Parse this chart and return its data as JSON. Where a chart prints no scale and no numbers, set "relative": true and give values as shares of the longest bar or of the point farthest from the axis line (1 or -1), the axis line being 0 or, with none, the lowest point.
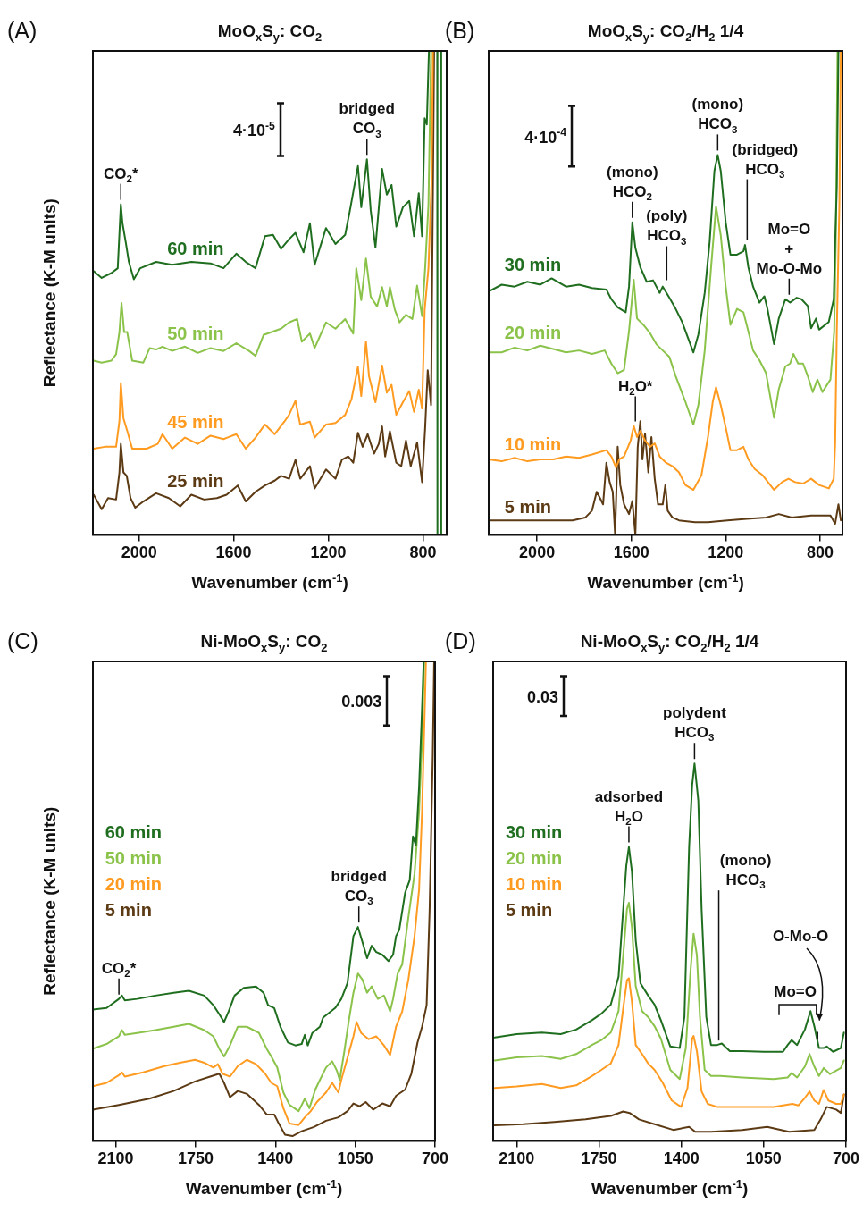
{
  "chart_data": [
    {
      "type": "line",
      "title": "MoO$_{x}$S$_{y}$: CO$_{2}$",
      "xlabel": "Wavenumber (cm$^{-1}$)",
      "ylabel": "Reflectance (K-M units)",
      "relative": true,
      "xlim": [
        2195,
        700
      ],
      "xticks": [
        2000,
        1600,
        1200,
        800
      ],
      "annotations": [
        "(A)",
        "4·10$^{-5}$",
        {
          "text": "CO$_{2}$*",
          "x": 2077,
          "y": 0.683
        },
        {
          "text": "bridged\nCO$_{3}$",
          "x": 1037,
          "y": 0.776
        }
      ],
      "series": [
        {
          "name": "60 min",
          "color": "#1f6e1f",
          "x": [
            2192,
            2158,
            2117,
            2090,
            2077,
            2070,
            2056,
            2043,
            2022,
            1995,
            1928,
            1860,
            1779,
            1698,
            1643,
            1589,
            1549,
            1508,
            1468,
            1434,
            1400,
            1366,
            1339,
            1305,
            1278,
            1258,
            1210,
            1170,
            1129,
            1109,
            1075,
            1061,
            1037,
            1021,
            1001,
            973,
            953,
            933,
            913,
            885,
            858,
            838,
            818,
            804,
            793,
            784,
            775,
            740,
            739,
            724,
            723
          ],
          "values": [
            0.545,
            0.531,
            0.541,
            0.551,
            0.683,
            0.644,
            0.604,
            0.564,
            0.528,
            0.551,
            0.564,
            0.558,
            0.564,
            0.561,
            0.551,
            0.581,
            0.564,
            0.551,
            0.617,
            0.62,
            0.591,
            0.611,
            0.624,
            0.584,
            0.644,
            0.558,
            0.634,
            0.601,
            0.62,
            0.67,
            0.762,
            0.677,
            0.776,
            0.67,
            0.594,
            0.756,
            0.703,
            0.723,
            0.637,
            0.677,
            0.69,
            0.617,
            0.706,
            0.617,
            0.861,
            0.848,
            1.0,
            1.0,
            0.0,
            0.0,
            1.0
          ]
        },
        {
          "name": "50 min",
          "color": "#8bc34a",
          "x": [
            2192,
            2158,
            2117,
            2097,
            2083,
            2074,
            2063,
            2050,
            2029,
            1982,
            1955,
            1928,
            1901,
            1860,
            1806,
            1752,
            1698,
            1643,
            1589,
            1535,
            1508,
            1474,
            1440,
            1400,
            1366,
            1332,
            1312,
            1278,
            1258,
            1210,
            1170,
            1129,
            1095,
            1082,
            1061,
            1041,
            1021,
            994,
            973,
            953,
            940,
            919,
            899,
            872,
            845,
            825,
            804,
            791,
            777,
            766
          ],
          "values": [
            0.36,
            0.356,
            0.36,
            0.373,
            0.419,
            0.479,
            0.419,
            0.419,
            0.36,
            0.356,
            0.386,
            0.383,
            0.389,
            0.38,
            0.389,
            0.376,
            0.386,
            0.38,
            0.396,
            0.38,
            0.37,
            0.413,
            0.419,
            0.426,
            0.439,
            0.446,
            0.399,
            0.416,
            0.386,
            0.439,
            0.426,
            0.446,
            0.416,
            0.551,
            0.485,
            0.571,
            0.492,
            0.472,
            0.512,
            0.472,
            0.512,
            0.465,
            0.439,
            0.455,
            0.446,
            0.515,
            0.452,
            0.551,
            0.683,
            1.0
          ]
        },
        {
          "name": "45 min",
          "color": "#ff9b21",
          "x": [
            2192,
            2144,
            2097,
            2083,
            2077,
            2066,
            2050,
            2029,
            1968,
            1921,
            1901,
            1860,
            1806,
            1752,
            1698,
            1643,
            1589,
            1549,
            1508,
            1468,
            1427,
            1386,
            1366,
            1339,
            1319,
            1278,
            1258,
            1210,
            1170,
            1129,
            1102,
            1075,
            1061,
            1041,
            1028,
            1001,
            973,
            953,
            933,
            913,
            885,
            858,
            838,
            818,
            804,
            793,
            777,
            764,
            758
          ],
          "values": [
            0.178,
            0.182,
            0.182,
            0.235,
            0.314,
            0.241,
            0.215,
            0.178,
            0.178,
            0.188,
            0.208,
            0.178,
            0.201,
            0.188,
            0.205,
            0.198,
            0.208,
            0.178,
            0.201,
            0.228,
            0.208,
            0.234,
            0.248,
            0.277,
            0.228,
            0.234,
            0.201,
            0.228,
            0.231,
            0.248,
            0.281,
            0.347,
            0.287,
            0.399,
            0.327,
            0.274,
            0.35,
            0.294,
            0.31,
            0.248,
            0.274,
            0.297,
            0.254,
            0.3,
            0.261,
            0.465,
            0.551,
            0.729,
            1.0
          ]
        },
        {
          "name": "25 min",
          "color": "#5c3a14",
          "x": [
            2192,
            2158,
            2131,
            2097,
            2083,
            2077,
            2066,
            2052,
            2036,
            2016,
            1982,
            1928,
            1874,
            1826,
            1779,
            1725,
            1671,
            1630,
            1583,
            1549,
            1508,
            1468,
            1427,
            1400,
            1366,
            1339,
            1319,
            1278,
            1258,
            1210,
            1170,
            1143,
            1116,
            1095,
            1075,
            1055,
            1034,
            1007,
            987,
            973,
            960,
            940,
            913,
            892,
            872,
            852,
            825,
            804,
            791,
            780,
            766,
            753
          ],
          "values": [
            0.083,
            0.053,
            0.076,
            0.073,
            0.129,
            0.188,
            0.129,
            0.122,
            0.076,
            0.056,
            0.069,
            0.086,
            0.076,
            0.059,
            0.083,
            0.073,
            0.076,
            0.083,
            0.102,
            0.069,
            0.089,
            0.102,
            0.112,
            0.122,
            0.116,
            0.155,
            0.116,
            0.142,
            0.096,
            0.135,
            0.116,
            0.155,
            0.162,
            0.149,
            0.211,
            0.182,
            0.208,
            0.168,
            0.188,
            0.224,
            0.162,
            0.214,
            0.149,
            0.142,
            0.195,
            0.142,
            0.191,
            0.109,
            0.221,
            0.34,
            0.268,
            1.0
          ]
        }
      ]
    },
    {
      "type": "line",
      "title": "MoO$_{x}$S$_{y}$: CO$_{2}$/H$_{2}$ 1/4",
      "xlabel": "Wavenumber (cm$^{-1}$)",
      "relative": true,
      "xlim": [
        2205,
        705
      ],
      "xticks": [
        2000,
        1600,
        1200,
        800
      ],
      "annotations": [
        "(B)",
        "4·10$^{-4}$",
        {
          "text": "(mono)\nHCO$_{2}$",
          "x": 1596,
          "y": 0.646
        },
        {
          "text": "(poly)\nHCO$_{3}$",
          "x": 1450,
          "y": 0.517
        },
        {
          "text": "(mono)\nHCO$_{3}$",
          "x": 1234,
          "y": 0.785
        },
        {
          "text": "(bridged)\nHCO$_{3}$",
          "x": 1109,
          "y": 0.6
        },
        {
          "text": "Mo=O\n+\nMo-O-Mo",
          "x": 931,
          "y": 0.487
        },
        {
          "text": "H$_{2}$O*",
          "x": 1583,
          "y": 0.225
        }
      ],
      "series": [
        {
          "name": "30 min",
          "color": "#1f6e1f",
          "x": [
            2205,
            2150,
            2095,
            2041,
            1986,
            1938,
            1877,
            1822,
            1767,
            1706,
            1685,
            1658,
            1624,
            1610,
            1596,
            1583,
            1562,
            1535,
            1508,
            1480,
            1467,
            1439,
            1412,
            1385,
            1337,
            1316,
            1289,
            1268,
            1248,
            1234,
            1221,
            1200,
            1180,
            1152,
            1125,
            1118,
            1104,
            1084,
            1057,
            1036,
            1023,
            995,
            975,
            947,
            927,
            899,
            879,
            852,
            838,
            817,
            804,
            763,
            742,
            736,
            729,
            722
          ],
          "values": [
            0.503,
            0.517,
            0.513,
            0.523,
            0.517,
            0.53,
            0.513,
            0.517,
            0.51,
            0.507,
            0.487,
            0.47,
            0.46,
            0.513,
            0.646,
            0.593,
            0.553,
            0.523,
            0.526,
            0.5,
            0.513,
            0.49,
            0.467,
            0.44,
            0.377,
            0.414,
            0.5,
            0.606,
            0.752,
            0.785,
            0.752,
            0.646,
            0.579,
            0.579,
            0.586,
            0.599,
            0.553,
            0.513,
            0.48,
            0.493,
            0.467,
            0.394,
            0.447,
            0.487,
            0.48,
            0.49,
            0.487,
            0.473,
            0.427,
            0.447,
            0.424,
            0.44,
            0.487,
            0.606,
            0.719,
            1.0
          ]
        },
        {
          "name": "20 min",
          "color": "#8bc34a",
          "x": [
            2205,
            2150,
            2095,
            2041,
            1986,
            1931,
            1877,
            1822,
            1767,
            1713,
            1685,
            1658,
            1631,
            1610,
            1590,
            1576,
            1549,
            1521,
            1494,
            1467,
            1439,
            1412,
            1371,
            1337,
            1316,
            1289,
            1262,
            1241,
            1221,
            1200,
            1180,
            1152,
            1125,
            1111,
            1084,
            1057,
            1029,
            995,
            975,
            947,
            927,
            913,
            893,
            872,
            852,
            831,
            811,
            790,
            756,
            740,
            733,
            726
          ],
          "values": [
            0.377,
            0.377,
            0.387,
            0.381,
            0.391,
            0.384,
            0.377,
            0.381,
            0.374,
            0.381,
            0.354,
            0.334,
            0.341,
            0.421,
            0.527,
            0.447,
            0.434,
            0.417,
            0.394,
            0.381,
            0.368,
            0.328,
            0.275,
            0.228,
            0.268,
            0.381,
            0.553,
            0.679,
            0.619,
            0.513,
            0.434,
            0.467,
            0.46,
            0.434,
            0.381,
            0.361,
            0.334,
            0.242,
            0.301,
            0.348,
            0.354,
            0.374,
            0.354,
            0.354,
            0.328,
            0.295,
            0.321,
            0.295,
            0.321,
            0.421,
            0.619,
            1.0
          ]
        },
        {
          "name": "10 min",
          "color": "#ff9b21",
          "x": [
            2205,
            2150,
            2095,
            2041,
            1986,
            1931,
            1877,
            1822,
            1767,
            1706,
            1685,
            1665,
            1651,
            1631,
            1603,
            1590,
            1576,
            1562,
            1542,
            1521,
            1501,
            1480,
            1453,
            1426,
            1398,
            1371,
            1337,
            1303,
            1275,
            1255,
            1241,
            1221,
            1200,
            1180,
            1152,
            1125,
            1104,
            1077,
            1043,
            995,
            961,
            934,
            906,
            872,
            838,
            804,
            763,
            742,
            736,
            729,
            718,
            712
          ],
          "values": [
            0.156,
            0.152,
            0.159,
            0.152,
            0.156,
            0.156,
            0.162,
            0.159,
            0.166,
            0.175,
            0.162,
            0.139,
            0.156,
            0.162,
            0.195,
            0.225,
            0.202,
            0.215,
            0.195,
            0.182,
            0.189,
            0.162,
            0.149,
            0.142,
            0.129,
            0.103,
            0.093,
            0.123,
            0.203,
            0.275,
            0.305,
            0.268,
            0.222,
            0.175,
            0.175,
            0.182,
            0.156,
            0.136,
            0.123,
            0.093,
            0.109,
            0.116,
            0.109,
            0.106,
            0.116,
            0.103,
            0.096,
            0.116,
            0.189,
            0.421,
            0.685,
            1.0
          ]
        },
        {
          "name": "5 min",
          "color": "#5c3a14",
          "x": [
            2205,
            2095,
            1959,
            1849,
            1795,
            1767,
            1747,
            1733,
            1720,
            1706,
            1692,
            1679,
            1669,
            1658,
            1647,
            1631,
            1610,
            1596,
            1583,
            1573,
            1562,
            1553,
            1542,
            1528,
            1515,
            1501,
            1487,
            1467,
            1456,
            1446,
            1426,
            1398,
            1330,
            1275,
            1193,
            1111,
            1029,
            975,
            920,
            838,
            756,
            736,
            722,
            712
          ],
          "values": [
            0.03,
            0.03,
            0.03,
            0.03,
            0.036,
            0.05,
            0.089,
            0.076,
            0.063,
            0.149,
            0.109,
            0.089,
            0.0,
            0.182,
            0.103,
            0.063,
            0.043,
            0.07,
            0.0,
            0.182,
            0.235,
            0.156,
            0.209,
            0.129,
            0.202,
            0.116,
            0.063,
            0.063,
            0.103,
            0.05,
            0.036,
            0.03,
            0.026,
            0.026,
            0.03,
            0.033,
            0.036,
            0.043,
            0.036,
            0.04,
            0.04,
            0.023,
            0.063,
            0.03
          ]
        }
      ]
    },
    {
      "type": "line",
      "title": "Ni-MoO$_{x}$S$_{y}$: CO$_{2}$",
      "xlabel": "Wavenumber (cm$^{-1}$)",
      "ylabel": "Reflectance (K-M units)",
      "relative": true,
      "xlim": [
        2200,
        700
      ],
      "xticks": [
        2100,
        1750,
        1400,
        1050,
        700
      ],
      "annotations": [
        "(C)",
        "0.003",
        {
          "text": "CO$_{2}$*",
          "x": 2086,
          "y": 0.296
        },
        {
          "text": "bridged\nCO$_{3}$",
          "x": 1034,
          "y": 0.446
        }
      ],
      "series": [
        {
          "name": "60 min",
          "color": "#1f6e1f",
          "x": [
            2200,
            2140,
            2086,
            2073,
            2060,
            2006,
            1926,
            1846,
            1779,
            1712,
            1672,
            1646,
            1625,
            1605,
            1579,
            1539,
            1485,
            1452,
            1432,
            1405,
            1378,
            1345,
            1312,
            1285,
            1271,
            1258,
            1238,
            1205,
            1191,
            1165,
            1138,
            1111,
            1084,
            1058,
            1038,
            1018,
            998,
            978,
            958,
            931,
            904,
            884,
            871,
            857,
            831,
            811,
            797,
            784,
            770,
            757,
            750
          ],
          "values": [
            0.274,
            0.277,
            0.296,
            0.303,
            0.293,
            0.296,
            0.303,
            0.309,
            0.313,
            0.303,
            0.283,
            0.264,
            0.248,
            0.27,
            0.303,
            0.319,
            0.322,
            0.309,
            0.283,
            0.277,
            0.238,
            0.205,
            0.199,
            0.202,
            0.221,
            0.199,
            0.225,
            0.238,
            0.257,
            0.267,
            0.277,
            0.296,
            0.329,
            0.427,
            0.446,
            0.414,
            0.381,
            0.407,
            0.394,
            0.388,
            0.375,
            0.388,
            0.427,
            0.44,
            0.518,
            0.544,
            0.635,
            0.616,
            0.739,
            0.902,
            1.0
          ]
        },
        {
          "name": "50 min",
          "color": "#8bc34a",
          "x": [
            2200,
            2140,
            2086,
            2073,
            2060,
            2006,
            1926,
            1846,
            1779,
            1712,
            1672,
            1646,
            1625,
            1599,
            1565,
            1525,
            1472,
            1438,
            1418,
            1392,
            1365,
            1338,
            1298,
            1271,
            1251,
            1225,
            1205,
            1178,
            1151,
            1131,
            1118,
            1098,
            1078,
            1058,
            1038,
            1018,
            998,
            978,
            951,
            924,
            897,
            884,
            864,
            844,
            817,
            790,
            770,
            757,
            748
          ],
          "values": [
            0.192,
            0.202,
            0.218,
            0.231,
            0.221,
            0.225,
            0.231,
            0.238,
            0.244,
            0.231,
            0.218,
            0.192,
            0.176,
            0.199,
            0.238,
            0.238,
            0.225,
            0.192,
            0.176,
            0.153,
            0.101,
            0.075,
            0.062,
            0.088,
            0.068,
            0.107,
            0.127,
            0.153,
            0.166,
            0.147,
            0.127,
            0.186,
            0.251,
            0.309,
            0.349,
            0.336,
            0.309,
            0.322,
            0.296,
            0.303,
            0.27,
            0.296,
            0.349,
            0.368,
            0.466,
            0.557,
            0.687,
            0.837,
            1.0
          ]
        },
        {
          "name": "20 min",
          "color": "#ff9b21",
          "x": [
            2200,
            2140,
            2086,
            2073,
            2060,
            1980,
            1886,
            1819,
            1752,
            1712,
            1672,
            1652,
            1632,
            1599,
            1565,
            1525,
            1485,
            1445,
            1418,
            1392,
            1365,
            1338,
            1298,
            1271,
            1245,
            1218,
            1178,
            1151,
            1124,
            1111,
            1084,
            1058,
            1044,
            1024,
            991,
            958,
            924,
            897,
            871,
            844,
            817,
            790,
            770,
            757,
            744,
            740
          ],
          "values": [
            0.114,
            0.121,
            0.137,
            0.143,
            0.134,
            0.143,
            0.156,
            0.163,
            0.169,
            0.163,
            0.153,
            0.16,
            0.14,
            0.134,
            0.156,
            0.169,
            0.16,
            0.14,
            0.121,
            0.114,
            0.068,
            0.036,
            0.033,
            0.049,
            0.062,
            0.081,
            0.101,
            0.121,
            0.101,
            0.127,
            0.173,
            0.218,
            0.248,
            0.225,
            0.212,
            0.218,
            0.199,
            0.179,
            0.238,
            0.27,
            0.336,
            0.427,
            0.524,
            0.687,
            0.922,
            1.0
          ]
        },
        {
          "name": "5 min",
          "color": "#5c3a14",
          "x": [
            2200,
            2086,
            1953,
            1846,
            1752,
            1686,
            1646,
            1625,
            1599,
            1565,
            1525,
            1472,
            1438,
            1405,
            1385,
            1358,
            1325,
            1285,
            1231,
            1178,
            1124,
            1084,
            1058,
            1031,
            1004,
            971,
            931,
            897,
            871,
            831,
            804,
            777,
            757,
            737,
            724,
            710,
            704
          ],
          "values": [
            0.065,
            0.075,
            0.088,
            0.104,
            0.124,
            0.134,
            0.14,
            0.121,
            0.091,
            0.104,
            0.098,
            0.075,
            0.055,
            0.055,
            0.036,
            0.013,
            0.01,
            0.02,
            0.029,
            0.042,
            0.049,
            0.062,
            0.078,
            0.072,
            0.081,
            0.065,
            0.078,
            0.072,
            0.094,
            0.107,
            0.14,
            0.205,
            0.238,
            0.283,
            0.479,
            0.805,
            1.0
          ]
        }
      ]
    },
    {
      "type": "line",
      "title": "Ni-MoO$_{x}$S$_{y}$: CO$_{2}$/H$_{2}$ 1/4",
      "xlabel": "Wavenumber (cm$^{-1}$)",
      "relative": true,
      "xlim": [
        2200,
        700
      ],
      "xticks": [
        2100,
        1750,
        1400,
        1050,
        700
      ],
      "annotations": [
        "(D)",
        "0.03",
        "Mo=O",
        "O-Mo-O",
        {
          "text": "adsorbed\nH$_{2}$O",
          "x": 1623,
          "y": 0.779
        },
        {
          "text": "polydent\nHCO$_{3}$",
          "x": 1344,
          "y": 1.0
        },
        {
          "text": "(mono)\nHCO$_{3}$",
          "x": 1241,
          "y": 0.254
        }
      ],
      "series": [
        {
          "name": "30 min",
          "color": "#1f6e1f",
          "x": [
            2193,
            2100,
            1993,
            1913,
            1847,
            1780,
            1740,
            1700,
            1667,
            1647,
            1634,
            1623,
            1610,
            1594,
            1574,
            1541,
            1514,
            1487,
            1447,
            1407,
            1387,
            1367,
            1354,
            1344,
            1328,
            1314,
            1294,
            1274,
            1248,
            1228,
            1194,
            1141,
            1048,
            968,
            948,
            931,
            908,
            875,
            851,
            835,
            815,
            795,
            782,
            755,
            722,
            709
          ],
          "values": [
            0.274,
            0.283,
            0.287,
            0.283,
            0.295,
            0.32,
            0.337,
            0.361,
            0.435,
            0.615,
            0.729,
            0.779,
            0.713,
            0.532,
            0.418,
            0.385,
            0.361,
            0.32,
            0.25,
            0.246,
            0.328,
            0.779,
            0.943,
            1.0,
            0.902,
            0.615,
            0.328,
            0.254,
            0.254,
            0.258,
            0.238,
            0.238,
            0.236,
            0.236,
            0.254,
            0.267,
            0.254,
            0.295,
            0.344,
            0.304,
            0.246,
            0.246,
            0.25,
            0.236,
            0.246,
            0.287
          ]
        },
        {
          "name": "20 min",
          "color": "#8bc34a",
          "x": [
            2193,
            2100,
            1993,
            1913,
            1847,
            1780,
            1740,
            1700,
            1667,
            1647,
            1631,
            1623,
            1610,
            1594,
            1567,
            1541,
            1514,
            1487,
            1447,
            1407,
            1381,
            1361,
            1348,
            1334,
            1321,
            1301,
            1274,
            1234,
            1141,
            1008,
            948,
            931,
            908,
            875,
            855,
            835,
            815,
            795,
            768,
            722,
            709
          ],
          "values": [
            0.213,
            0.221,
            0.225,
            0.217,
            0.23,
            0.254,
            0.267,
            0.287,
            0.344,
            0.492,
            0.615,
            0.631,
            0.565,
            0.41,
            0.344,
            0.328,
            0.304,
            0.271,
            0.188,
            0.164,
            0.246,
            0.451,
            0.549,
            0.492,
            0.328,
            0.188,
            0.172,
            0.172,
            0.168,
            0.164,
            0.168,
            0.18,
            0.168,
            0.197,
            0.23,
            0.197,
            0.172,
            0.193,
            0.177,
            0.193,
            0.213
          ]
        },
        {
          "name": "10 min",
          "color": "#ff9b21",
          "x": [
            2193,
            2100,
            1993,
            1913,
            1847,
            1780,
            1740,
            1700,
            1667,
            1647,
            1631,
            1623,
            1610,
            1594,
            1567,
            1541,
            1514,
            1481,
            1441,
            1401,
            1374,
            1354,
            1348,
            1334,
            1314,
            1288,
            1248,
            1141,
            1008,
            928,
            902,
            875,
            855,
            835,
            815,
            795,
            775,
            742,
            722,
            709
          ],
          "values": [
            0.14,
            0.144,
            0.151,
            0.14,
            0.147,
            0.172,
            0.188,
            0.205,
            0.254,
            0.352,
            0.426,
            0.431,
            0.368,
            0.254,
            0.23,
            0.205,
            0.188,
            0.156,
            0.107,
            0.09,
            0.14,
            0.271,
            0.278,
            0.238,
            0.131,
            0.098,
            0.09,
            0.09,
            0.09,
            0.098,
            0.094,
            0.114,
            0.131,
            0.107,
            0.098,
            0.135,
            0.107,
            0.098,
            0.098,
            0.123
          ]
        },
        {
          "name": "5 min",
          "color": "#5c3a14",
          "x": [
            2193,
            2073,
            1940,
            1807,
            1700,
            1647,
            1620,
            1580,
            1514,
            1434,
            1367,
            1341,
            1274,
            1141,
            1035,
            942,
            835,
            808,
            782,
            742,
            722,
            709
          ],
          "values": [
            0.041,
            0.044,
            0.05,
            0.057,
            0.066,
            0.078,
            0.074,
            0.057,
            0.044,
            0.029,
            0.037,
            0.024,
            0.024,
            0.029,
            0.037,
            0.024,
            0.029,
            0.057,
            0.09,
            0.083,
            0.074,
            0.123
          ]
        }
      ]
    }
  ]
}
